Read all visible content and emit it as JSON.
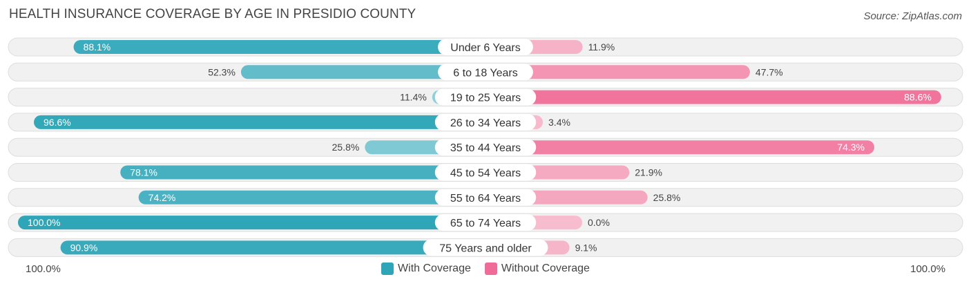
{
  "title": "HEALTH INSURANCE COVERAGE BY AGE IN PRESIDIO COUNTY",
  "source": "Source: ZipAtlas.com",
  "axis": {
    "left_label": "100.0%",
    "right_label": "100.0%"
  },
  "legend": [
    {
      "label": "With Coverage",
      "color": "#2ea6b8"
    },
    {
      "label": "Without Coverage",
      "color": "#f06b97"
    }
  ],
  "chart_data": {
    "type": "bar",
    "orientation": "diverging-horizontal",
    "title": "HEALTH INSURANCE COVERAGE BY AGE IN PRESIDIO COUNTY",
    "categories": [
      "Under 6 Years",
      "6 to 18 Years",
      "19 to 25 Years",
      "26 to 34 Years",
      "35 to 44 Years",
      "45 to 54 Years",
      "55 to 64 Years",
      "65 to 74 Years",
      "75 Years and older"
    ],
    "series": [
      {
        "name": "With Coverage",
        "values": [
          88.1,
          52.3,
          11.4,
          96.6,
          25.8,
          78.1,
          74.2,
          100.0,
          90.9
        ],
        "labels": [
          "88.1%",
          "52.3%",
          "11.4%",
          "96.6%",
          "25.8%",
          "78.1%",
          "74.2%",
          "100.0%",
          "90.9%"
        ]
      },
      {
        "name": "Without Coverage",
        "values": [
          11.9,
          47.7,
          88.6,
          3.4,
          74.3,
          21.9,
          25.8,
          0.0,
          9.1
        ],
        "labels": [
          "11.9%",
          "47.7%",
          "88.6%",
          "3.4%",
          "74.3%",
          "21.9%",
          "25.8%",
          "0.0%",
          "9.1%"
        ]
      }
    ],
    "xlim": [
      0,
      100
    ],
    "legend_position": "bottom-center"
  }
}
